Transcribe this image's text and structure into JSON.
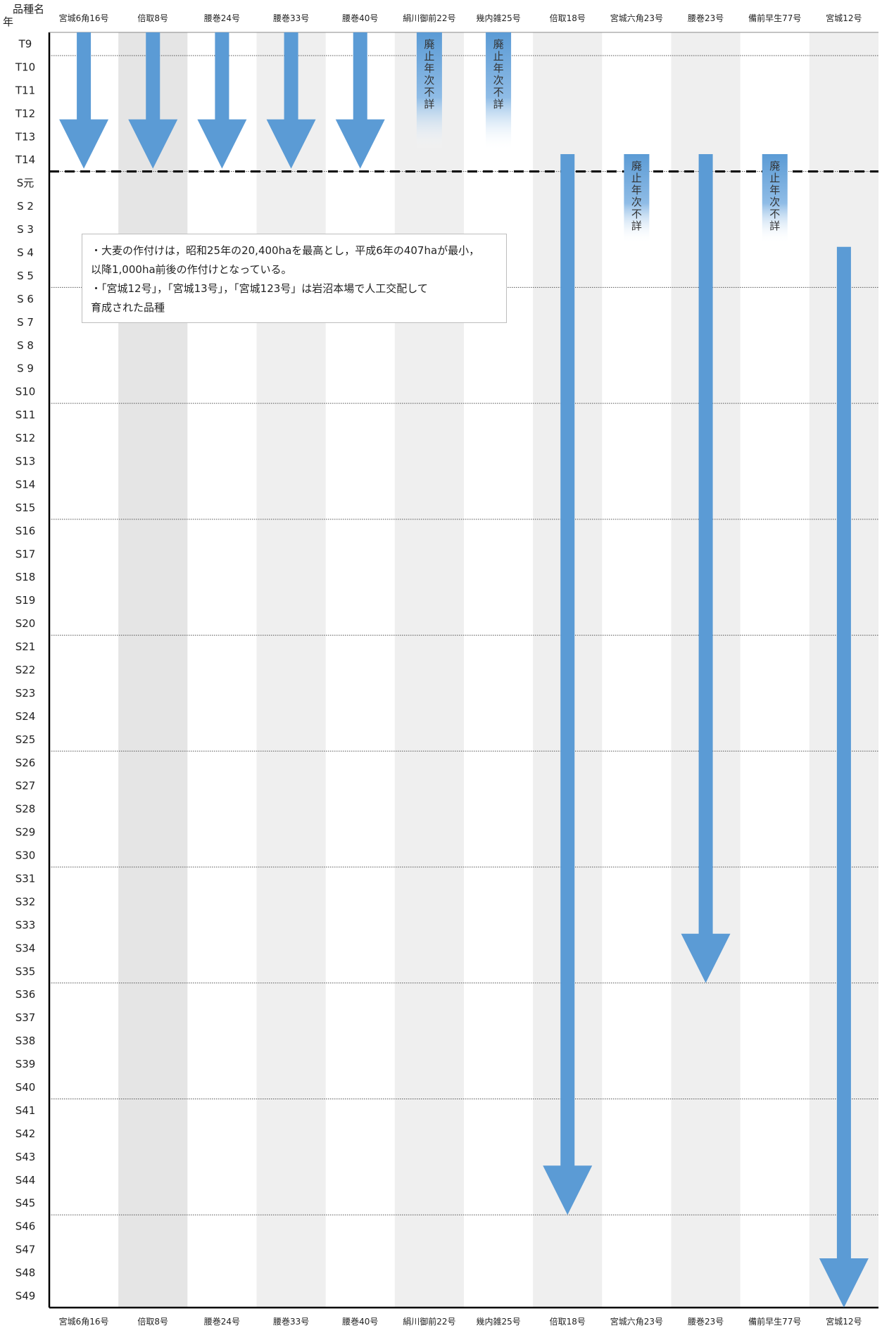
{
  "header": {
    "variety_label": "品種名",
    "year_label": "年"
  },
  "columns": [
    "宮城6角16号",
    "倍取8号",
    "腰巻24号",
    "腰巻33号",
    "腰巻40号",
    "絹川御前22号",
    "幾内雑25号",
    "倍取18号",
    "宮城六角23号",
    "腰巻23号",
    "備前早生77号",
    "宮城12号"
  ],
  "years": [
    "T9",
    "T10",
    "T11",
    "T12",
    "T13",
    "T14",
    "S元",
    "S 2",
    "S 3",
    "S 4",
    "S 5",
    "S 6",
    "S 7",
    "S 8",
    "S 9",
    "S10",
    "S11",
    "S12",
    "S13",
    "S14",
    "S15",
    "S16",
    "S17",
    "S18",
    "S19",
    "S20",
    "S21",
    "S22",
    "S23",
    "S24",
    "S25",
    "S26",
    "S27",
    "S28",
    "S29",
    "S30",
    "S31",
    "S32",
    "S33",
    "S34",
    "S35",
    "S36",
    "S37",
    "S38",
    "S39",
    "S40",
    "S41",
    "S42",
    "S43",
    "S44",
    "S45",
    "S46",
    "S47",
    "S48",
    "S49"
  ],
  "unknown_label": "廃止年次不詳",
  "note": {
    "lines": [
      "・大麦の作付けは，昭和25年の20,400haを最高とし，平成6年の407haが最小，",
      "以降1,000ha前後の作付けとなっている。",
      "・「宮城12号」，「宮城13号」，「宮城123号」は岩沼本場で人工交配して",
      "育成された品種"
    ]
  },
  "chart_data": {
    "type": "timeline",
    "divider_after_year": "T14",
    "bars": [
      {
        "variety": "宮城6角16号",
        "start": "T9",
        "end": "T14",
        "ends_with": "arrow"
      },
      {
        "variety": "倍取8号",
        "start": "T9",
        "end": "T14",
        "ends_with": "arrow"
      },
      {
        "variety": "腰巻24号",
        "start": "T9",
        "end": "T14",
        "ends_with": "arrow"
      },
      {
        "variety": "腰巻33号",
        "start": "T9",
        "end": "T14",
        "ends_with": "arrow"
      },
      {
        "variety": "腰巻40号",
        "start": "T9",
        "end": "T14",
        "ends_with": "arrow"
      },
      {
        "variety": "絹川御前22号",
        "start": "T9",
        "end": "T13",
        "ends_with": "fade",
        "label": "廃止年次不詳"
      },
      {
        "variety": "幾内雑25号",
        "start": "T9",
        "end": "T13",
        "ends_with": "fade",
        "label": "廃止年次不詳"
      },
      {
        "variety": "倍取18号",
        "start": "T14",
        "end": "S45",
        "ends_with": "arrow"
      },
      {
        "variety": "宮城六角23号",
        "start": "T14",
        "end": "S 3",
        "ends_with": "fade",
        "label": "廃止年次不詳"
      },
      {
        "variety": "腰巻23号",
        "start": "T14",
        "end": "S35",
        "ends_with": "arrow"
      },
      {
        "variety": "備前早生77号",
        "start": "T14",
        "end": "S 3",
        "ends_with": "fade",
        "label": "廃止年次不詳"
      },
      {
        "variety": "宮城12号",
        "start": "S 4",
        "end": "S49",
        "ends_with": "arrow"
      }
    ]
  },
  "colors": {
    "arrow": "#5b9bd5",
    "stripe": "#e8e8e8",
    "axis": "#000000",
    "grid": "#555555"
  }
}
